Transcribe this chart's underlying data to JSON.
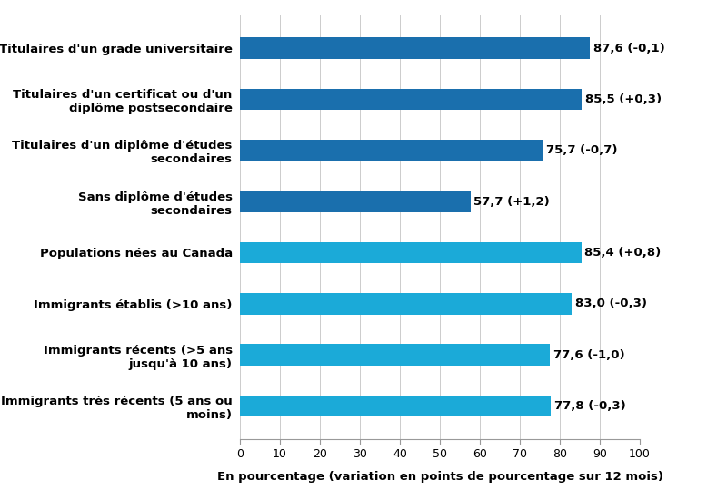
{
  "categories": [
    "Titulaires d'un grade universitaire",
    "Titulaires d'un certificat ou d'un\ndiplôme postsecondaire",
    "Titulaires d'un diplôme d'études\nsecondaires",
    "Sans diplôme d'études\nsecondaires",
    "Populations nées au Canada",
    "Immigrants établis (>10 ans)",
    "Immigrants récents (>5 ans\njusqu'à 10 ans)",
    "Immigrants très récents (5 ans ou\nmoins)"
  ],
  "values": [
    87.6,
    85.5,
    75.7,
    57.7,
    85.4,
    83.0,
    77.6,
    77.8
  ],
  "labels": [
    "87,6 (-0,1)",
    "85,5 (+0,3)",
    "75,7 (-0,7)",
    "57,7 (+1,2)",
    "85,4 (+0,8)",
    "83,0 (-0,3)",
    "77,6 (-1,0)",
    "77,8 (-0,3)"
  ],
  "bar_colors": [
    "#1A6FAD",
    "#1A6FAD",
    "#1A6FAD",
    "#1A6FAD",
    "#1BAAD8",
    "#1BAAD8",
    "#1BAAD8",
    "#1BAAD8"
  ],
  "xlabel": "En pourcentage (variation en points de pourcentage sur 12 mois)",
  "xlim": [
    0,
    100
  ],
  "xticks": [
    0,
    10,
    20,
    30,
    40,
    50,
    60,
    70,
    80,
    90,
    100
  ],
  "background_color": "#ffffff",
  "bar_height": 0.42,
  "label_fontsize": 9.5,
  "tick_fontsize": 9,
  "xlabel_fontsize": 9.5,
  "ytick_fontsize": 9.5
}
